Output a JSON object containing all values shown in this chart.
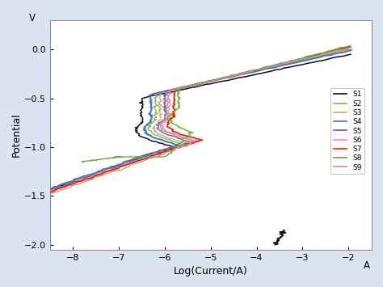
{
  "xlabel": "Log(Current/A)",
  "ylabel": "Potential",
  "ylabel_unit": "V",
  "xlabel_unit": "A",
  "xlim": [
    -8.5,
    -1.5
  ],
  "ylim": [
    -2.05,
    0.3
  ],
  "xticks": [
    -8,
    -7,
    -6,
    -5,
    -4,
    -3,
    -2
  ],
  "yticks": [
    -2.0,
    -1.5,
    -1.0,
    -0.5,
    0.0
  ],
  "bg_color": "#d9e4f0",
  "plot_bg": "#ffffff",
  "legend_labels": [
    "S1",
    "S2",
    "S3",
    "S4",
    "S5",
    "S6",
    "S7",
    "S8",
    "S9"
  ],
  "colors": [
    "#111111",
    "#88bb44",
    "#c8a882",
    "#4472c4",
    "#7f4f9f",
    "#ff80c0",
    "#ee2200",
    "#60b030",
    "#b0a090"
  ],
  "linewidths": [
    1.1,
    1.0,
    1.0,
    1.4,
    1.0,
    1.0,
    1.3,
    1.0,
    1.0
  ],
  "samples": [
    {
      "ecorr": -1.13,
      "icorr": -6.7,
      "epass": -0.75,
      "ipass": -6.5,
      "epit": -0.1,
      "ipit": -2.0,
      "eact_peak": -1.0,
      "iact_peak": -5.8,
      "ebot": -2.0,
      "ibot_end": -3.5
    },
    {
      "ecorr": -1.1,
      "icorr": -6.5,
      "epass": -0.72,
      "ipass": -6.2,
      "epit": -0.05,
      "ipit": -2.0,
      "eact_peak": -0.97,
      "iact_peak": -5.6,
      "ebot": -2.0,
      "ibot_end": -3.3
    },
    {
      "ecorr": -1.09,
      "icorr": -6.4,
      "epass": -0.73,
      "ipass": -6.1,
      "epit": -0.04,
      "ipit": -2.0,
      "eact_peak": -0.96,
      "iact_peak": -5.5,
      "ebot": -1.95,
      "ibot_end": -3.2
    },
    {
      "ecorr": -1.11,
      "icorr": -6.6,
      "epass": -0.74,
      "ipass": -6.3,
      "epit": -0.06,
      "ipit": -2.0,
      "eact_peak": -0.98,
      "iact_peak": -5.7,
      "ebot": -1.98,
      "ibot_end": -3.4
    },
    {
      "ecorr": -1.08,
      "icorr": -6.3,
      "epass": -0.71,
      "ipass": -6.0,
      "epit": -0.03,
      "ipit": -2.0,
      "eact_peak": -0.95,
      "iact_peak": -5.4,
      "ebot": -1.93,
      "ibot_end": -3.1
    },
    {
      "ecorr": -1.07,
      "icorr": -6.2,
      "epass": -0.7,
      "ipass": -5.9,
      "epit": -0.03,
      "ipit": -2.0,
      "eact_peak": -0.94,
      "iact_peak": -5.3,
      "ebot": -1.92,
      "ibot_end": -3.0
    },
    {
      "ecorr": -1.06,
      "icorr": -6.1,
      "epass": -0.69,
      "ipass": -5.8,
      "epit": -0.02,
      "ipit": -2.0,
      "eact_peak": -0.93,
      "iact_peak": -5.2,
      "ebot": -1.9,
      "ibot_end": -2.9
    },
    {
      "ecorr": -1.1,
      "icorr": -6.0,
      "epass": -0.6,
      "ipass": -5.7,
      "epit": -0.01,
      "ipit": -2.0,
      "eact_peak": -0.85,
      "iact_peak": -5.4,
      "ebot": -1.12,
      "ibot_end": -7.8
    },
    {
      "ecorr": -1.09,
      "icorr": -6.15,
      "epass": -0.7,
      "ipass": -5.95,
      "epit": -0.03,
      "ipit": -2.0,
      "eact_peak": -0.94,
      "iact_peak": -5.35,
      "ebot": -1.95,
      "ibot_end": -3.15
    }
  ]
}
